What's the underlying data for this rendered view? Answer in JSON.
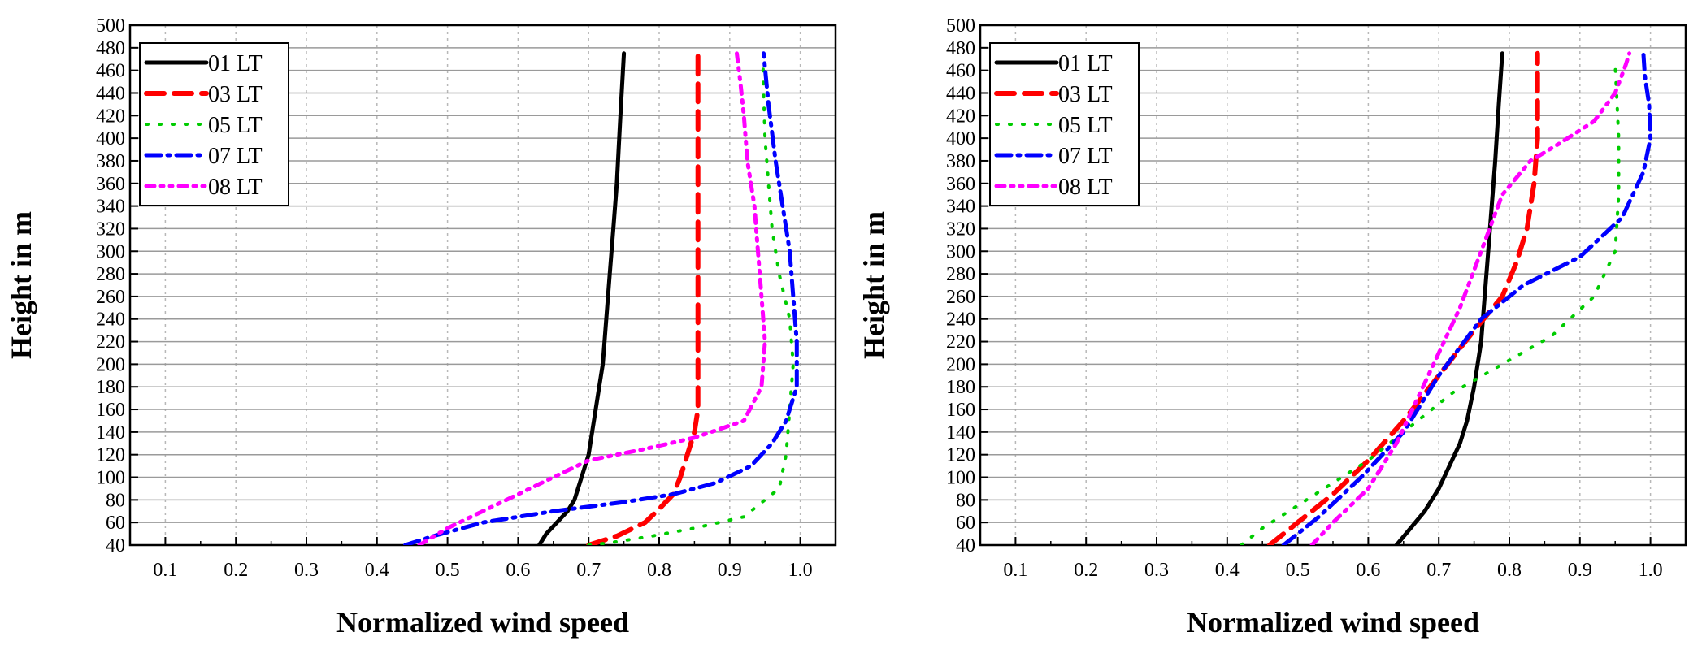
{
  "colors": {
    "01 LT": "#000000",
    "03 LT": "#ff0000",
    "05 LT": "#00cc00",
    "07 LT": "#0000ff",
    "08 LT": "#ff00ff"
  },
  "chart_data": [
    {
      "type": "line",
      "panel": "left",
      "title": "",
      "xlabel": "Normalized wind speed",
      "ylabel": "Height in m",
      "xlim": [
        0.05,
        1.05
      ],
      "ylim": [
        40,
        500
      ],
      "xticks": [
        "0.1",
        "0.2",
        "0.3",
        "0.4",
        "0.5",
        "0.6",
        "0.7",
        "0.8",
        "0.9",
        "1.0"
      ],
      "yticks": [
        "40",
        "60",
        "80",
        "100",
        "120",
        "140",
        "160",
        "180",
        "200",
        "220",
        "240",
        "260",
        "280",
        "300",
        "320",
        "340",
        "360",
        "380",
        "400",
        "420",
        "440",
        "460",
        "480",
        "500"
      ],
      "grid": true,
      "legend_position": "top-left",
      "series": [
        {
          "name": "01 LT",
          "style": "solid",
          "x": [
            0.63,
            0.64,
            0.655,
            0.67,
            0.68,
            0.69,
            0.7,
            0.705,
            0.71,
            0.715,
            0.72,
            0.725,
            0.73,
            0.735,
            0.74,
            0.745,
            0.75
          ],
          "y": [
            40,
            50,
            60,
            70,
            80,
            100,
            120,
            140,
            160,
            180,
            200,
            240,
            280,
            320,
            360,
            420,
            475
          ]
        },
        {
          "name": "03 LT",
          "style": "dash",
          "x": [
            0.7,
            0.74,
            0.78,
            0.8,
            0.82,
            0.83,
            0.84,
            0.85,
            0.855,
            0.855,
            0.855,
            0.855,
            0.855,
            0.855
          ],
          "y": [
            40,
            48,
            60,
            72,
            85,
            100,
            120,
            140,
            160,
            200,
            260,
            320,
            400,
            475
          ]
        },
        {
          "name": "05 LT",
          "style": "dot",
          "x": [
            0.7,
            0.73,
            0.79,
            0.85,
            0.92,
            0.97,
            0.98,
            0.985,
            0.99,
            0.985,
            0.97,
            0.96,
            0.955,
            0.95,
            0.948,
            0.947
          ],
          "y": [
            40,
            42,
            48,
            55,
            65,
            90,
            120,
            160,
            200,
            240,
            280,
            320,
            360,
            400,
            440,
            470
          ]
        },
        {
          "name": "07 LT",
          "style": "dashdot",
          "x": [
            0.44,
            0.48,
            0.55,
            0.65,
            0.75,
            0.82,
            0.88,
            0.93,
            0.96,
            0.98,
            0.995,
            0.995,
            0.99,
            0.985,
            0.975,
            0.965,
            0.955,
            0.948
          ],
          "y": [
            40,
            48,
            60,
            70,
            78,
            85,
            95,
            110,
            130,
            150,
            180,
            220,
            260,
            300,
            340,
            380,
            430,
            475
          ]
        },
        {
          "name": "08 LT",
          "style": "dashdotdot",
          "x": [
            0.46,
            0.5,
            0.55,
            0.6,
            0.65,
            0.7,
            0.78,
            0.85,
            0.92,
            0.945,
            0.95,
            0.945,
            0.94,
            0.935,
            0.925,
            0.92,
            0.915,
            0.91
          ],
          "y": [
            40,
            55,
            70,
            85,
            100,
            115,
            125,
            135,
            150,
            180,
            220,
            260,
            300,
            340,
            380,
            420,
            450,
            475
          ]
        }
      ]
    },
    {
      "type": "line",
      "panel": "right",
      "title": "",
      "xlabel": "Normalized wind speed",
      "ylabel": "Height in m",
      "xlim": [
        0.05,
        1.05
      ],
      "ylim": [
        40,
        500
      ],
      "xticks": [
        "0.1",
        "0.2",
        "0.3",
        "0.4",
        "0.5",
        "0.6",
        "0.7",
        "0.8",
        "0.9",
        "1.0"
      ],
      "yticks": [
        "40",
        "60",
        "80",
        "100",
        "120",
        "140",
        "160",
        "180",
        "200",
        "220",
        "240",
        "260",
        "280",
        "300",
        "320",
        "340",
        "360",
        "380",
        "400",
        "420",
        "440",
        "460",
        "480",
        "500"
      ],
      "grid": true,
      "legend_position": "top-left",
      "series": [
        {
          "name": "01 LT",
          "style": "solid",
          "x": [
            0.64,
            0.66,
            0.68,
            0.7,
            0.715,
            0.73,
            0.74,
            0.75,
            0.76,
            0.765,
            0.77,
            0.775,
            0.78,
            0.785,
            0.79
          ],
          "y": [
            40,
            55,
            70,
            90,
            110,
            130,
            150,
            180,
            220,
            260,
            300,
            340,
            380,
            430,
            475
          ]
        },
        {
          "name": "03 LT",
          "style": "dash",
          "x": [
            0.46,
            0.5,
            0.55,
            0.6,
            0.65,
            0.7,
            0.75,
            0.79,
            0.81,
            0.825,
            0.835,
            0.84,
            0.84,
            0.84
          ],
          "y": [
            40,
            60,
            85,
            115,
            150,
            190,
            230,
            260,
            290,
            320,
            360,
            400,
            440,
            475
          ]
        },
        {
          "name": "05 LT",
          "style": "dot",
          "x": [
            0.42,
            0.45,
            0.5,
            0.55,
            0.6,
            0.66,
            0.72,
            0.79,
            0.86,
            0.92,
            0.95,
            0.955,
            0.955,
            0.952,
            0.95
          ],
          "y": [
            40,
            55,
            75,
            95,
            115,
            145,
            175,
            200,
            225,
            260,
            300,
            350,
            400,
            440,
            465
          ]
        },
        {
          "name": "07 LT",
          "style": "dashdot",
          "x": [
            0.48,
            0.53,
            0.59,
            0.65,
            0.7,
            0.76,
            0.82,
            0.9,
            0.96,
            0.99,
            1.0,
            0.998,
            0.992,
            0.99
          ],
          "y": [
            40,
            65,
            100,
            140,
            190,
            240,
            270,
            295,
            330,
            370,
            400,
            430,
            455,
            475
          ]
        },
        {
          "name": "08 LT",
          "style": "dashdotdot",
          "x": [
            0.52,
            0.55,
            0.6,
            0.64,
            0.67,
            0.7,
            0.73,
            0.76,
            0.79,
            0.83,
            0.87,
            0.92,
            0.95,
            0.965,
            0.97
          ],
          "y": [
            40,
            60,
            90,
            130,
            170,
            210,
            250,
            300,
            350,
            380,
            395,
            415,
            440,
            465,
            475
          ]
        }
      ]
    }
  ]
}
